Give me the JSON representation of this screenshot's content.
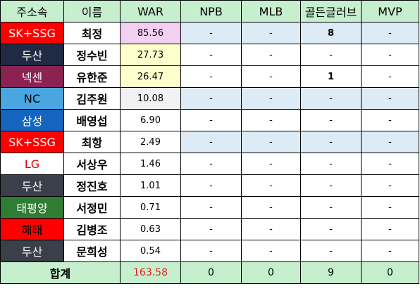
{
  "headers": [
    "주소속",
    "이름",
    "WAR",
    "NPB",
    "MLB",
    "골든글러브",
    "MVP"
  ],
  "rows": [
    {
      "team": "SK+SSG",
      "team_bg": "#ff0000",
      "team_fg": "#ffffff",
      "name": "최정",
      "war": "85.56",
      "war_bg": "#f2d0f2",
      "npb": "-",
      "mlb": "-",
      "gg": "8",
      "mvp": "-"
    },
    {
      "team": "두산",
      "team_bg": "#1f2a44",
      "team_fg": "#ffffff",
      "name": "정수빈",
      "war": "27.73",
      "war_bg": "#ffffcc",
      "npb": "-",
      "mlb": "-",
      "gg": "-",
      "mvp": "-"
    },
    {
      "team": "넥센",
      "team_bg": "#8b2252",
      "team_fg": "#ffffff",
      "name": "유한준",
      "war": "26.47",
      "war_bg": "#ffffcc",
      "npb": "-",
      "mlb": "-",
      "gg": "1",
      "mvp": "-"
    },
    {
      "team": "NC",
      "team_bg": "#4aa6e0",
      "team_fg": "#000000",
      "name": "김주원",
      "war": "10.08",
      "war_bg": "#f2f2f2",
      "npb": "-",
      "mlb": "-",
      "gg": "-",
      "mvp": "-"
    },
    {
      "team": "삼성",
      "team_bg": "#1565c0",
      "team_fg": "#ffffff",
      "name": "배영섭",
      "war": "6.90",
      "war_bg": "#ffffff",
      "npb": "-",
      "mlb": "-",
      "gg": "-",
      "mvp": "-"
    },
    {
      "team": "SK+SSG",
      "team_bg": "#ff0000",
      "team_fg": "#ffffff",
      "name": "최항",
      "war": "2.49",
      "war_bg": "#ffffff",
      "npb": "-",
      "mlb": "-",
      "gg": "-",
      "mvp": "-"
    },
    {
      "team": "LG",
      "team_bg": "#ffffff",
      "team_fg": "#e00000",
      "name": "서상우",
      "war": "1.46",
      "war_bg": "#ffffff",
      "npb": "-",
      "mlb": "-",
      "gg": "-",
      "mvp": "-"
    },
    {
      "team": "두산",
      "team_bg": "#3a3f4a",
      "team_fg": "#ffffff",
      "name": "정진호",
      "war": "1.01",
      "war_bg": "#ffffff",
      "npb": "-",
      "mlb": "-",
      "gg": "-",
      "mvp": "-"
    },
    {
      "team": "태평양",
      "team_bg": "#2e7d32",
      "team_fg": "#ffffff",
      "name": "서정민",
      "war": "0.71",
      "war_bg": "#ffffff",
      "npb": "-",
      "mlb": "-",
      "gg": "-",
      "mvp": "-"
    },
    {
      "team": "해태",
      "team_bg": "#ff0000",
      "team_fg": "#000000",
      "name": "김병조",
      "war": "0.63",
      "war_bg": "#ffffff",
      "npb": "-",
      "mlb": "-",
      "gg": "-",
      "mvp": "-"
    },
    {
      "team": "두산",
      "team_bg": "#3a3f4a",
      "team_fg": "#ffffff",
      "name": "문희성",
      "war": "0.54",
      "war_bg": "#ffffff",
      "npb": "-",
      "mlb": "-",
      "gg": "-",
      "mvp": "-"
    }
  ],
  "total": {
    "label": "합계",
    "war": "163.58",
    "npb": "0",
    "mlb": "0",
    "gg": "9",
    "mvp": "0"
  }
}
